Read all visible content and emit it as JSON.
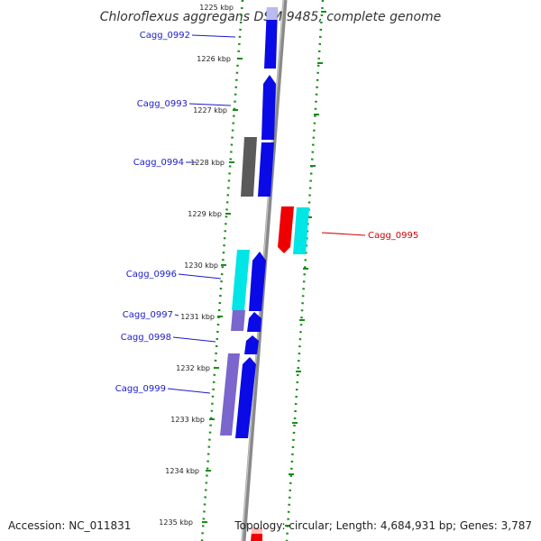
{
  "title": "Chloroflexus aggregans DSM 9485, complete genome",
  "footer": {
    "accession": "Accession: NC_011831",
    "stats": "Topology: circular; Length: 4,684,931 bp; Genes: 3,787"
  },
  "kbp_ticks": [
    "1225 kbp",
    "1226 kbp",
    "1227 kbp",
    "1228 kbp",
    "1229 kbp",
    "1230 kbp",
    "1231 kbp",
    "1232 kbp",
    "1233 kbp",
    "1234 kbp",
    "1235 kbp"
  ],
  "gene_labels": [
    {
      "name": "Cagg_0992",
      "color": "#1a1acc"
    },
    {
      "name": "Cagg_0993",
      "color": "#1a1acc"
    },
    {
      "name": "Cagg_0994",
      "color": "#1a1acc"
    },
    {
      "name": "Cagg_0995",
      "color": "#d40000"
    },
    {
      "name": "Cagg_0996",
      "color": "#1a1acc"
    },
    {
      "name": "Cagg_0997",
      "color": "#1a1acc"
    },
    {
      "name": "Cagg_0998",
      "color": "#1a1acc"
    },
    {
      "name": "Cagg_0999",
      "color": "#1a1acc"
    }
  ],
  "colors": {
    "cds_forward": "#0a0ae6",
    "cds_reverse": "#ee0000",
    "cyan_feature": "#00e5e5",
    "purple_feature": "#7a66cc",
    "gray_feature": "#5a5a5a",
    "backbone": "#888888",
    "dot_ring": "#1a8c1a"
  }
}
